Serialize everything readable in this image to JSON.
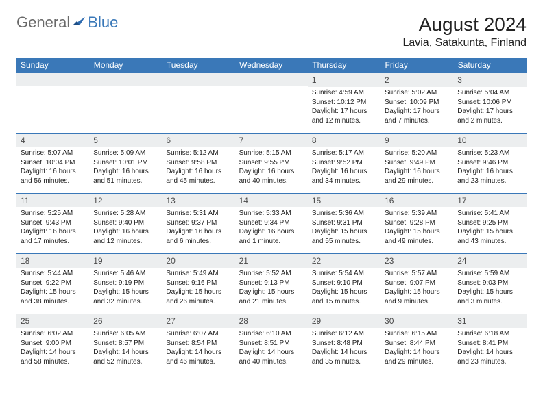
{
  "brand": {
    "part1": "General",
    "part2": "Blue"
  },
  "title": "August 2024",
  "location": "Lavia, Satakunta, Finland",
  "colors": {
    "header_bg": "#3a78b8",
    "header_text": "#ffffff",
    "daynum_bg": "#eceeef",
    "row_border": "#3a78b8",
    "body_text": "#1a1a1a",
    "logo_gray": "#6a6a6a",
    "logo_blue": "#3a78b8",
    "page_bg": "#ffffff"
  },
  "typography": {
    "title_fontsize": 28,
    "subtitle_fontsize": 16,
    "weekday_fontsize": 12,
    "daynum_fontsize": 12,
    "body_fontsize": 10
  },
  "weekdays": [
    "Sunday",
    "Monday",
    "Tuesday",
    "Wednesday",
    "Thursday",
    "Friday",
    "Saturday"
  ],
  "weeks": [
    [
      {
        "day": "",
        "sunrise": "",
        "sunset": "",
        "daylight": ""
      },
      {
        "day": "",
        "sunrise": "",
        "sunset": "",
        "daylight": ""
      },
      {
        "day": "",
        "sunrise": "",
        "sunset": "",
        "daylight": ""
      },
      {
        "day": "",
        "sunrise": "",
        "sunset": "",
        "daylight": ""
      },
      {
        "day": "1",
        "sunrise": "Sunrise: 4:59 AM",
        "sunset": "Sunset: 10:12 PM",
        "daylight": "Daylight: 17 hours and 12 minutes."
      },
      {
        "day": "2",
        "sunrise": "Sunrise: 5:02 AM",
        "sunset": "Sunset: 10:09 PM",
        "daylight": "Daylight: 17 hours and 7 minutes."
      },
      {
        "day": "3",
        "sunrise": "Sunrise: 5:04 AM",
        "sunset": "Sunset: 10:06 PM",
        "daylight": "Daylight: 17 hours and 2 minutes."
      }
    ],
    [
      {
        "day": "4",
        "sunrise": "Sunrise: 5:07 AM",
        "sunset": "Sunset: 10:04 PM",
        "daylight": "Daylight: 16 hours and 56 minutes."
      },
      {
        "day": "5",
        "sunrise": "Sunrise: 5:09 AM",
        "sunset": "Sunset: 10:01 PM",
        "daylight": "Daylight: 16 hours and 51 minutes."
      },
      {
        "day": "6",
        "sunrise": "Sunrise: 5:12 AM",
        "sunset": "Sunset: 9:58 PM",
        "daylight": "Daylight: 16 hours and 45 minutes."
      },
      {
        "day": "7",
        "sunrise": "Sunrise: 5:15 AM",
        "sunset": "Sunset: 9:55 PM",
        "daylight": "Daylight: 16 hours and 40 minutes."
      },
      {
        "day": "8",
        "sunrise": "Sunrise: 5:17 AM",
        "sunset": "Sunset: 9:52 PM",
        "daylight": "Daylight: 16 hours and 34 minutes."
      },
      {
        "day": "9",
        "sunrise": "Sunrise: 5:20 AM",
        "sunset": "Sunset: 9:49 PM",
        "daylight": "Daylight: 16 hours and 29 minutes."
      },
      {
        "day": "10",
        "sunrise": "Sunrise: 5:23 AM",
        "sunset": "Sunset: 9:46 PM",
        "daylight": "Daylight: 16 hours and 23 minutes."
      }
    ],
    [
      {
        "day": "11",
        "sunrise": "Sunrise: 5:25 AM",
        "sunset": "Sunset: 9:43 PM",
        "daylight": "Daylight: 16 hours and 17 minutes."
      },
      {
        "day": "12",
        "sunrise": "Sunrise: 5:28 AM",
        "sunset": "Sunset: 9:40 PM",
        "daylight": "Daylight: 16 hours and 12 minutes."
      },
      {
        "day": "13",
        "sunrise": "Sunrise: 5:31 AM",
        "sunset": "Sunset: 9:37 PM",
        "daylight": "Daylight: 16 hours and 6 minutes."
      },
      {
        "day": "14",
        "sunrise": "Sunrise: 5:33 AM",
        "sunset": "Sunset: 9:34 PM",
        "daylight": "Daylight: 16 hours and 1 minute."
      },
      {
        "day": "15",
        "sunrise": "Sunrise: 5:36 AM",
        "sunset": "Sunset: 9:31 PM",
        "daylight": "Daylight: 15 hours and 55 minutes."
      },
      {
        "day": "16",
        "sunrise": "Sunrise: 5:39 AM",
        "sunset": "Sunset: 9:28 PM",
        "daylight": "Daylight: 15 hours and 49 minutes."
      },
      {
        "day": "17",
        "sunrise": "Sunrise: 5:41 AM",
        "sunset": "Sunset: 9:25 PM",
        "daylight": "Daylight: 15 hours and 43 minutes."
      }
    ],
    [
      {
        "day": "18",
        "sunrise": "Sunrise: 5:44 AM",
        "sunset": "Sunset: 9:22 PM",
        "daylight": "Daylight: 15 hours and 38 minutes."
      },
      {
        "day": "19",
        "sunrise": "Sunrise: 5:46 AM",
        "sunset": "Sunset: 9:19 PM",
        "daylight": "Daylight: 15 hours and 32 minutes."
      },
      {
        "day": "20",
        "sunrise": "Sunrise: 5:49 AM",
        "sunset": "Sunset: 9:16 PM",
        "daylight": "Daylight: 15 hours and 26 minutes."
      },
      {
        "day": "21",
        "sunrise": "Sunrise: 5:52 AM",
        "sunset": "Sunset: 9:13 PM",
        "daylight": "Daylight: 15 hours and 21 minutes."
      },
      {
        "day": "22",
        "sunrise": "Sunrise: 5:54 AM",
        "sunset": "Sunset: 9:10 PM",
        "daylight": "Daylight: 15 hours and 15 minutes."
      },
      {
        "day": "23",
        "sunrise": "Sunrise: 5:57 AM",
        "sunset": "Sunset: 9:07 PM",
        "daylight": "Daylight: 15 hours and 9 minutes."
      },
      {
        "day": "24",
        "sunrise": "Sunrise: 5:59 AM",
        "sunset": "Sunset: 9:03 PM",
        "daylight": "Daylight: 15 hours and 3 minutes."
      }
    ],
    [
      {
        "day": "25",
        "sunrise": "Sunrise: 6:02 AM",
        "sunset": "Sunset: 9:00 PM",
        "daylight": "Daylight: 14 hours and 58 minutes."
      },
      {
        "day": "26",
        "sunrise": "Sunrise: 6:05 AM",
        "sunset": "Sunset: 8:57 PM",
        "daylight": "Daylight: 14 hours and 52 minutes."
      },
      {
        "day": "27",
        "sunrise": "Sunrise: 6:07 AM",
        "sunset": "Sunset: 8:54 PM",
        "daylight": "Daylight: 14 hours and 46 minutes."
      },
      {
        "day": "28",
        "sunrise": "Sunrise: 6:10 AM",
        "sunset": "Sunset: 8:51 PM",
        "daylight": "Daylight: 14 hours and 40 minutes."
      },
      {
        "day": "29",
        "sunrise": "Sunrise: 6:12 AM",
        "sunset": "Sunset: 8:48 PM",
        "daylight": "Daylight: 14 hours and 35 minutes."
      },
      {
        "day": "30",
        "sunrise": "Sunrise: 6:15 AM",
        "sunset": "Sunset: 8:44 PM",
        "daylight": "Daylight: 14 hours and 29 minutes."
      },
      {
        "day": "31",
        "sunrise": "Sunrise: 6:18 AM",
        "sunset": "Sunset: 8:41 PM",
        "daylight": "Daylight: 14 hours and 23 minutes."
      }
    ]
  ]
}
